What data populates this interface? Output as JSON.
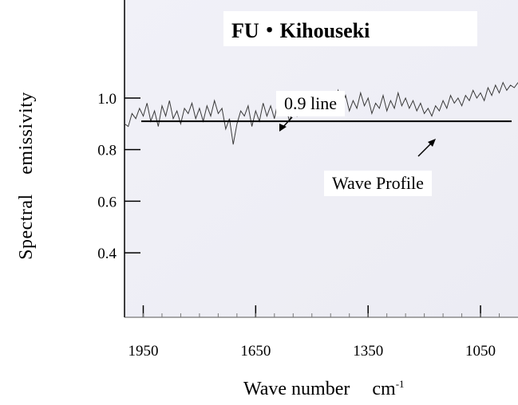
{
  "chart_data": {
    "type": "line",
    "title": "FU・Kihouseki",
    "ylabel": "Spectral　emissivity",
    "xlabel": "Wave number",
    "xlabel_unit": "cm",
    "xlabel_unit_exp": "-1",
    "x_ticks": [
      1950,
      1650,
      1350,
      1050
    ],
    "y_ticks": [
      1.0,
      0.8,
      0.6,
      0.4
    ],
    "y_tick_labels": [
      "1.0",
      "0.8",
      "0.6",
      "0.4"
    ],
    "xlim": [
      2000,
      950
    ],
    "ylim": [
      0.15,
      1.38
    ],
    "x_reversed": true,
    "grid": false,
    "reference_line": {
      "y": 0.91,
      "label": "0.9 line"
    },
    "annotations": [
      {
        "text": "0.9 line",
        "target": "reference line"
      },
      {
        "text": "Wave Profile",
        "target": "spectrum trace"
      }
    ],
    "series": [
      {
        "x": [
          2000,
          1990,
          1980,
          1970,
          1960,
          1950,
          1940,
          1930,
          1920,
          1910,
          1900,
          1890,
          1880,
          1870,
          1860,
          1850,
          1840,
          1830,
          1820,
          1810,
          1800,
          1790,
          1780,
          1770,
          1760,
          1750,
          1740,
          1730,
          1720,
          1710,
          1700,
          1690,
          1680,
          1670,
          1660,
          1650,
          1640,
          1630,
          1620,
          1610,
          1600,
          1590,
          1580,
          1570,
          1560,
          1550,
          1540,
          1530,
          1520,
          1510,
          1500,
          1490,
          1480,
          1470,
          1460,
          1450,
          1440,
          1430,
          1420,
          1410,
          1400,
          1390,
          1380,
          1370,
          1360,
          1350,
          1340,
          1330,
          1320,
          1310,
          1300,
          1290,
          1280,
          1270,
          1260,
          1250,
          1240,
          1230,
          1220,
          1210,
          1200,
          1190,
          1180,
          1170,
          1160,
          1150,
          1140,
          1130,
          1120,
          1110,
          1100,
          1090,
          1080,
          1070,
          1060,
          1050,
          1040,
          1030,
          1020,
          1010,
          1000,
          990,
          980,
          970,
          960,
          950
        ],
        "y": [
          0.9,
          0.89,
          0.94,
          0.92,
          0.96,
          0.93,
          0.98,
          0.91,
          0.95,
          0.89,
          0.97,
          0.93,
          0.99,
          0.92,
          0.95,
          0.9,
          0.96,
          0.94,
          0.98,
          0.92,
          0.96,
          0.91,
          0.97,
          0.93,
          0.99,
          0.94,
          0.96,
          0.88,
          0.92,
          0.82,
          0.9,
          0.95,
          0.93,
          0.97,
          0.89,
          0.95,
          0.91,
          0.98,
          0.93,
          0.97,
          0.92,
          0.99,
          0.94,
          0.97,
          0.91,
          0.96,
          0.93,
          0.98,
          0.94,
          1.0,
          0.95,
          0.99,
          0.96,
          1.01,
          0.97,
          1.02,
          0.98,
          1.03,
          0.97,
          1.01,
          0.95,
          0.99,
          0.96,
          1.02,
          0.97,
          1.0,
          0.94,
          0.98,
          0.96,
          1.01,
          0.95,
          0.99,
          0.96,
          1.02,
          0.97,
          1.0,
          0.96,
          0.99,
          0.95,
          0.98,
          0.94,
          0.96,
          0.93,
          0.97,
          0.95,
          0.99,
          0.96,
          1.01,
          0.98,
          1.0,
          0.97,
          1.01,
          0.99,
          1.03,
          1.0,
          1.02,
          0.99,
          1.04,
          1.01,
          1.05,
          1.02,
          1.06,
          1.03,
          1.05,
          1.04,
          1.06
        ]
      }
    ]
  }
}
